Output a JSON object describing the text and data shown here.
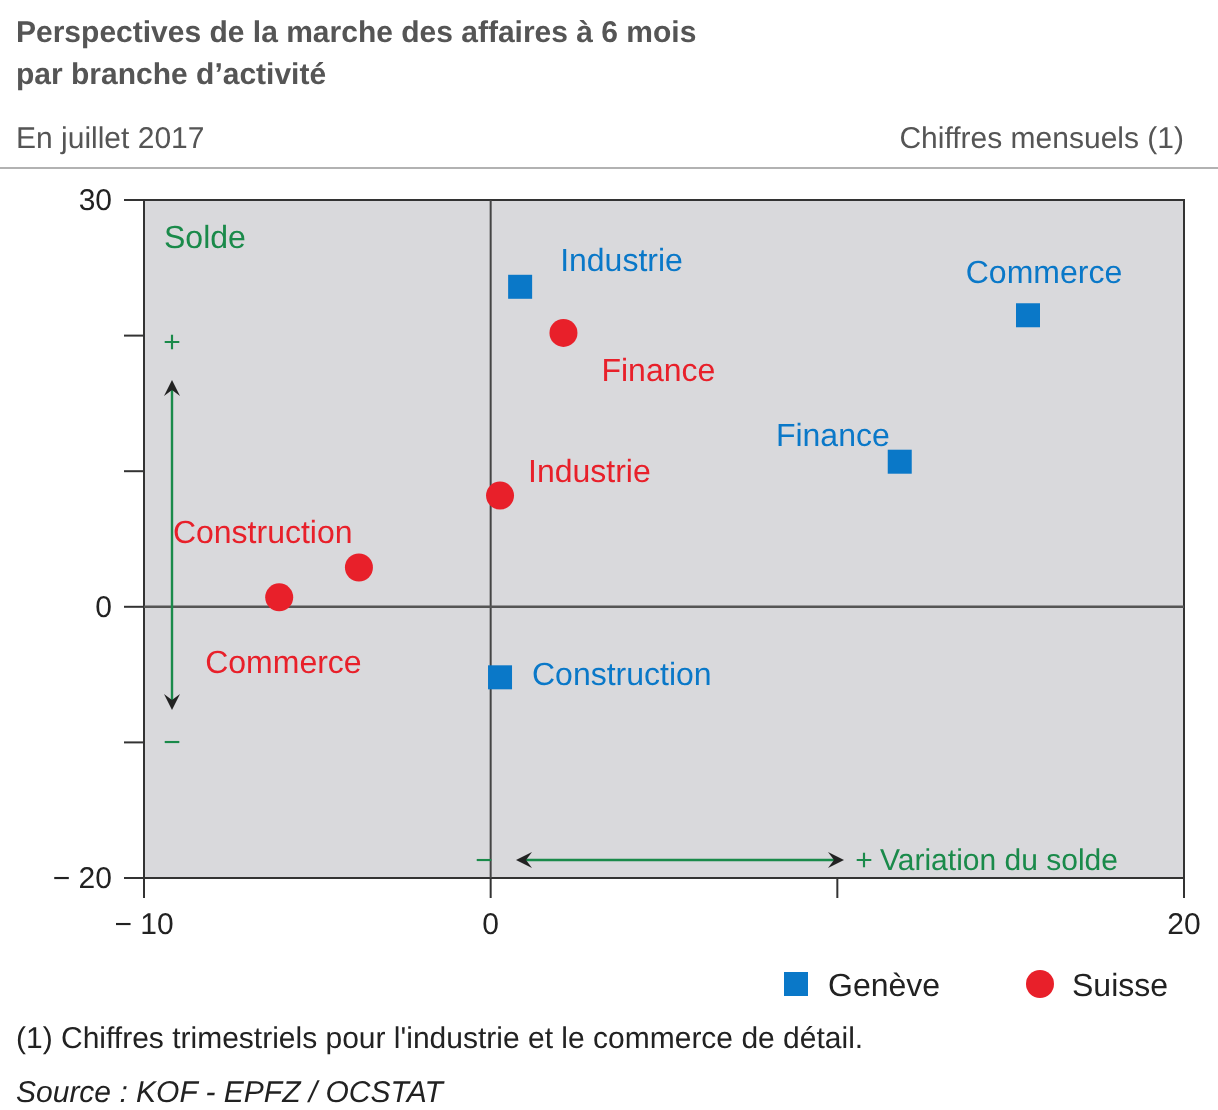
{
  "chart_data": {
    "type": "scatter",
    "title": "Perspectives de la marche des affaires à 6 mois par branche d’activité",
    "subtitle": "En juillet 2017",
    "series": [
      {
        "name": "Genève",
        "color": "#0a78c8",
        "marker": "square",
        "x": [
          0.85,
          15.5,
          11.8,
          0.27
        ],
        "values": [
          23.6,
          21.5,
          10.7,
          -5.2
        ]
      },
      {
        "name": "Suisse",
        "color": "#e8202a",
        "marker": "circle",
        "x": [
          2.1,
          0.27,
          -3.8,
          -6.1
        ],
        "values": [
          20.2,
          8.2,
          2.9,
          0.7
        ]
      }
    ],
    "xlim": [
      -10,
      20
    ],
    "ylim": [
      -20,
      30
    ],
    "xticks": [
      {
        "value": -10,
        "label": "− 10"
      },
      0,
      {
        "value": 10,
        "label": null
      },
      20
    ],
    "yticks": [
      {
        "value": -20,
        "label": "− 20"
      },
      {
        "value": -10,
        "label": null
      },
      0,
      {
        "value": 10,
        "label": null
      },
      {
        "value": 20,
        "label": null
      },
      30
    ],
    "ref_lines": [
      {
        "axis": "x",
        "value": 0
      },
      {
        "axis": "y",
        "value": 0
      }
    ],
    "grid": false,
    "legend": "bottom right",
    "annotations": [
      "Chiffres mensuels (1)",
      "Solde",
      "+",
      "−",
      "−",
      "+",
      "Variation du solde",
      "(1) Chiffres trimestriels pour  l'industrie et le commerce de détail.",
      "Source : KOF - EPFZ / OCSTAT",
      {
        "text": "Industrie",
        "x": 0.85,
        "y": 23.6
      },
      {
        "text": "Commerce",
        "x": 15.5,
        "y": 21.5
      },
      {
        "text": "Finance",
        "x": 11.8,
        "y": 10.7
      },
      {
        "text": "Construction",
        "x": 0.27,
        "y": -5.2
      },
      {
        "text": "Finance",
        "x": 2.1,
        "y": 20.2
      },
      {
        "text": "Industrie",
        "x": 0.27,
        "y": 8.2
      },
      {
        "text": "Construction",
        "x": -3.8,
        "y": 2.9
      },
      {
        "text": "Commerce",
        "x": -6.1,
        "y": 0.7
      }
    ]
  }
}
